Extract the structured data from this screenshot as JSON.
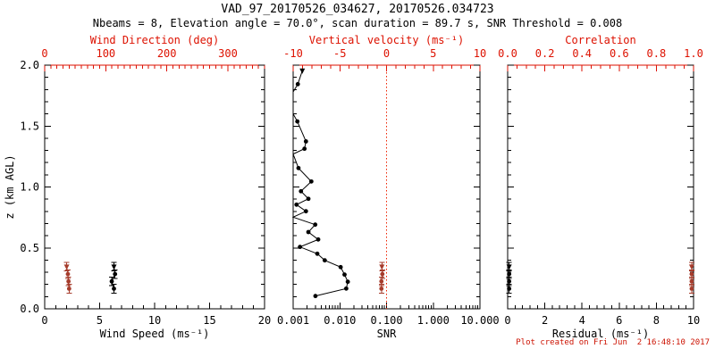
{
  "header": {
    "title": "VAD_97_20170526_034627, 20170526.034723",
    "subtitle": "Nbeams = 8, Elevation angle = 70.0°, scan duration = 89.7 s, SNR Threshold = 0.008"
  },
  "footer": {
    "credit": "Plot created on Fri Jun  2 16:48:10 2017"
  },
  "colors": {
    "black": "#000000",
    "axis_red": "#dd1100",
    "marker_red": "#a63c2c",
    "refline_red": "#ee2200"
  },
  "chart_data": {
    "type": "scatter",
    "y_axis": {
      "label": "z (km AGL)",
      "range": [
        0,
        2
      ],
      "ticks": [
        0,
        0.5,
        1,
        1.5,
        2
      ],
      "tick_labels": [
        "0.0",
        "0.5",
        "1.0",
        "1.5",
        "2.0"
      ],
      "minor": 0.1
    },
    "panels": [
      {
        "id": "wind",
        "x_bottom": {
          "label": "Wind Speed (ms⁻¹)",
          "range": [
            0,
            20
          ],
          "ticks": [
            0,
            5,
            10,
            15,
            20
          ],
          "tick_labels": [
            "0",
            "5",
            "10",
            "15",
            "20"
          ],
          "minor": 1
        },
        "x_top": {
          "label": "Wind Direction (deg)",
          "range": [
            0,
            360
          ],
          "ticks": [
            0,
            100,
            200,
            300
          ],
          "tick_labels": [
            "0",
            "100",
            "200",
            "300"
          ],
          "minor": 10
        },
        "series": [
          {
            "name": "wind-speed",
            "axis": "bottom",
            "color": "black",
            "line": true,
            "errbar_z": 0.035,
            "points": [
              {
                "z": 0.345,
                "v": 6.3
              },
              {
                "z": 0.285,
                "v": 6.4
              },
              {
                "z": 0.225,
                "v": 6.1
              },
              {
                "z": 0.165,
                "v": 6.3
              }
            ]
          },
          {
            "name": "wind-direction",
            "axis": "top",
            "color": "red",
            "line": true,
            "errbar_z": 0.035,
            "points": [
              {
                "z": 0.345,
                "v": 36
              },
              {
                "z": 0.285,
                "v": 38
              },
              {
                "z": 0.225,
                "v": 39
              },
              {
                "z": 0.165,
                "v": 40
              }
            ]
          }
        ]
      },
      {
        "id": "snr",
        "x_bottom": {
          "label": "SNR",
          "scale": "log",
          "range": [
            0.001,
            10
          ],
          "ticks": [
            0.001,
            0.01,
            0.1,
            1,
            10
          ],
          "tick_labels": [
            "0.001",
            "0.010",
            "0.100",
            "1.000",
            "10.000"
          ]
        },
        "x_top": {
          "label": "Vertical velocity (ms⁻¹)",
          "range": [
            -10,
            10
          ],
          "ticks": [
            -10,
            -5,
            0,
            5,
            10
          ],
          "tick_labels": [
            "-10",
            "-5",
            "0",
            "5",
            "10"
          ],
          "minor": 1
        },
        "refline": {
          "axis": "top",
          "value": 0
        },
        "series": [
          {
            "name": "snr-profile",
            "axis": "bottom",
            "color": "black",
            "line": true,
            "points": [
              {
                "z": 1.954,
                "v": 0.00157
              },
              {
                "z": 1.844,
                "v": 0.00126
              },
              {
                "z": 1.78,
                "v": 0.001,
                "m": 0
              },
              {
                "z": 1.72,
                "v": 0.001,
                "m": 0
              },
              {
                "z": 1.66,
                "v": 0.001,
                "m": 0
              },
              {
                "z": 1.6,
                "v": 0.001,
                "m": 0
              },
              {
                "z": 1.538,
                "v": 0.00123
              },
              {
                "z": 1.374,
                "v": 0.00188
              },
              {
                "z": 1.314,
                "v": 0.00175
              },
              {
                "z": 1.27,
                "v": 0.001,
                "m": 0
              },
              {
                "z": 1.155,
                "v": 0.0013
              },
              {
                "z": 1.045,
                "v": 0.00245
              },
              {
                "z": 0.965,
                "v": 0.00147
              },
              {
                "z": 0.903,
                "v": 0.00212
              },
              {
                "z": 0.855,
                "v": 0.00118
              },
              {
                "z": 0.801,
                "v": 0.00188
              },
              {
                "z": 0.752,
                "v": 0.001,
                "m": 0
              },
              {
                "z": 0.691,
                "v": 0.00297
              },
              {
                "z": 0.63,
                "v": 0.00212
              },
              {
                "z": 0.569,
                "v": 0.00344
              },
              {
                "z": 0.508,
                "v": 0.0014
              },
              {
                "z": 0.452,
                "v": 0.00329
              },
              {
                "z": 0.398,
                "v": 0.00475
              },
              {
                "z": 0.342,
                "v": 0.0104
              },
              {
                "z": 0.281,
                "v": 0.0126
              },
              {
                "z": 0.222,
                "v": 0.0148
              },
              {
                "z": 0.166,
                "v": 0.0137
              },
              {
                "z": 0.105,
                "v": 0.003
              }
            ]
          },
          {
            "name": "vertical-velocity",
            "axis": "top",
            "color": "red",
            "line": true,
            "errbar_z": 0.035,
            "points": [
              {
                "z": 0.345,
                "v": -0.5
              },
              {
                "z": 0.285,
                "v": -0.45
              },
              {
                "z": 0.225,
                "v": -0.55
              },
              {
                "z": 0.165,
                "v": -0.55
              }
            ]
          }
        ]
      },
      {
        "id": "residual",
        "x_bottom": {
          "label": "Residual (ms⁻¹)",
          "range": [
            0,
            10
          ],
          "ticks": [
            0,
            2,
            4,
            6,
            8,
            10
          ],
          "tick_labels": [
            "0",
            "2",
            "4",
            "6",
            "8",
            "10"
          ],
          "minor": 0.4
        },
        "x_top": {
          "label": "Correlation",
          "range": [
            0,
            1
          ],
          "ticks": [
            0,
            0.2,
            0.4,
            0.6,
            0.8,
            1
          ],
          "tick_labels": [
            "0.0",
            "0.2",
            "0.4",
            "0.6",
            "0.8",
            "1.0"
          ],
          "minor": 0.05
        },
        "series": [
          {
            "name": "residual",
            "axis": "bottom",
            "color": "black",
            "line": true,
            "errbar_z": 0.035,
            "points": [
              {
                "z": 0.345,
                "v": 0.08
              },
              {
                "z": 0.285,
                "v": 0.08
              },
              {
                "z": 0.225,
                "v": 0.08
              },
              {
                "z": 0.165,
                "v": 0.08
              }
            ]
          },
          {
            "name": "correlation",
            "axis": "top",
            "color": "red",
            "line": true,
            "errbar_z": 0.035,
            "points": [
              {
                "z": 0.345,
                "v": 0.99
              },
              {
                "z": 0.285,
                "v": 0.99
              },
              {
                "z": 0.225,
                "v": 0.99
              },
              {
                "z": 0.165,
                "v": 0.99
              }
            ]
          }
        ]
      }
    ]
  }
}
